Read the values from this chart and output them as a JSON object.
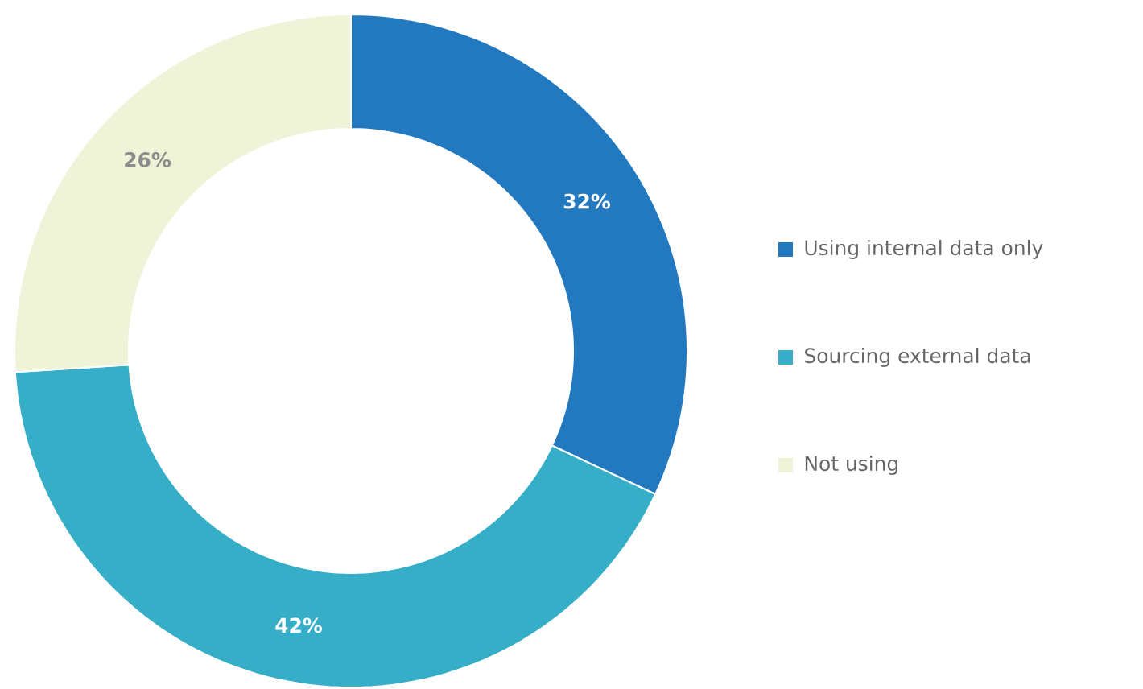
{
  "chart_data": {
    "type": "donut",
    "categories": [
      "Using internal data only",
      "Sourcing external data",
      "Not using"
    ],
    "values": [
      32,
      42,
      26
    ],
    "colors": [
      "#2379bf",
      "#36aec8",
      "#eff4d9"
    ],
    "value_labels": [
      "32%",
      "42%",
      "26%"
    ],
    "legend": "right"
  }
}
